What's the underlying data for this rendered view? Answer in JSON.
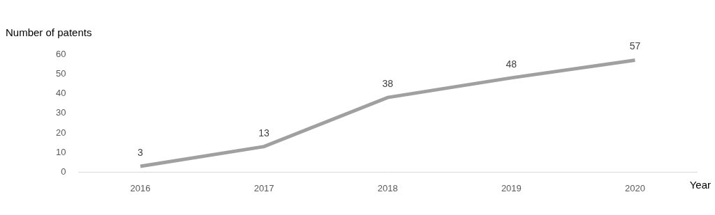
{
  "chart_data": {
    "type": "line",
    "x_label": "Year",
    "y_label": "Number of patents",
    "categories": [
      "2016",
      "2017",
      "2018",
      "2019",
      "2020"
    ],
    "values": [
      3,
      13,
      38,
      48,
      57
    ],
    "color": "#a0a0a0",
    "ylim": [
      0,
      60
    ],
    "yticks": [
      0,
      10,
      20,
      30,
      40,
      50,
      60
    ],
    "grid": false,
    "data_labels": true,
    "legend": false
  }
}
